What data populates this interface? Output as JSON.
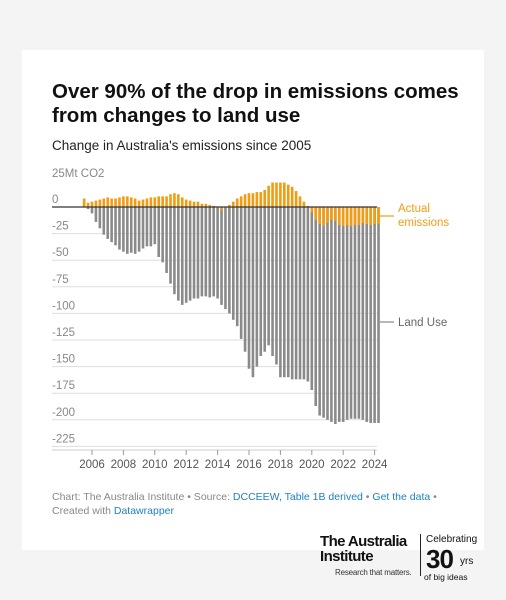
{
  "title": "Over 90% of the drop in emissions comes from changes to land use",
  "subtitle": "Change in Australia's emissions since 2005",
  "colors": {
    "actual": "#f39c12",
    "land_use": "#8a8a8a",
    "zero_line": "#333333",
    "grid": "#dddddd",
    "link": "#1d81c2"
  },
  "chart_data": {
    "type": "bar",
    "unit_label": "25Mt CO2",
    "y_ticks": [
      0,
      -25,
      -50,
      -75,
      -100,
      -125,
      -150,
      -175,
      -200,
      -225
    ],
    "x_ticks": [
      "2006",
      "2008",
      "2010",
      "2012",
      "2014",
      "2016",
      "2018",
      "2020",
      "2022",
      "2024"
    ],
    "ylim": [
      -230,
      25
    ],
    "x_range": [
      2005.0,
      2025.0
    ],
    "x": [
      2005.5,
      2005.75,
      2006.0,
      2006.25,
      2006.5,
      2006.75,
      2007.0,
      2007.25,
      2007.5,
      2007.75,
      2008.0,
      2008.25,
      2008.5,
      2008.75,
      2009.0,
      2009.25,
      2009.5,
      2009.75,
      2010.0,
      2010.25,
      2010.5,
      2010.75,
      2011.0,
      2011.25,
      2011.5,
      2011.75,
      2012.0,
      2012.25,
      2012.5,
      2012.75,
      2013.0,
      2013.25,
      2013.5,
      2013.75,
      2014.0,
      2014.25,
      2014.5,
      2014.75,
      2015.0,
      2015.25,
      2015.5,
      2015.75,
      2016.0,
      2016.25,
      2016.5,
      2016.75,
      2017.0,
      2017.25,
      2017.5,
      2017.75,
      2018.0,
      2018.25,
      2018.5,
      2018.75,
      2019.0,
      2019.25,
      2019.5,
      2019.75,
      2020.0,
      2020.25,
      2020.5,
      2020.75,
      2021.0,
      2021.25,
      2021.5,
      2021.75,
      2022.0,
      2022.25,
      2022.5,
      2022.75,
      2023.0,
      2023.25,
      2023.5,
      2023.75,
      2024.0,
      2024.25
    ],
    "series": [
      {
        "name": "Actual emissions",
        "values": [
          8,
          4,
          5,
          6,
          7,
          8,
          9,
          8,
          8,
          9,
          10,
          10,
          9,
          8,
          6,
          7,
          8,
          9,
          9,
          10,
          10,
          10,
          12,
          13,
          12,
          9,
          7,
          6,
          5,
          5,
          3,
          3,
          2,
          1,
          -1,
          -3,
          -1,
          2,
          5,
          8,
          10,
          12,
          13,
          13,
          14,
          14,
          16,
          20,
          23,
          23,
          23,
          23,
          21,
          19,
          15,
          10,
          5,
          1,
          -5,
          -12,
          -16,
          -18,
          -15,
          -12,
          -13,
          -17,
          -18,
          -17,
          -18,
          -17,
          -17,
          -15,
          -16,
          -17,
          -16,
          -16
        ]
      },
      {
        "name": "Land Use",
        "values": [
          0,
          -2,
          -6,
          -14,
          -20,
          -26,
          -30,
          -33,
          -36,
          -40,
          -42,
          -44,
          -43,
          -44,
          -42,
          -39,
          -37,
          -37,
          -35,
          -47,
          -52,
          -62,
          -72,
          -82,
          -88,
          -92,
          -90,
          -88,
          -86,
          -86,
          -84,
          -84,
          -85,
          -84,
          -86,
          -92,
          -96,
          -100,
          -106,
          -112,
          -124,
          -136,
          -152,
          -160,
          -150,
          -140,
          -136,
          -130,
          -140,
          -148,
          -160,
          -160,
          -160,
          -162,
          -162,
          -162,
          -162,
          -164,
          -172,
          -187,
          -196,
          -198,
          -200,
          -202,
          -204,
          -202,
          -202,
          -200,
          -199,
          -199,
          -199,
          -200,
          -202,
          -203,
          -203,
          -203
        ]
      }
    ],
    "annotations": [
      "Actual emissions",
      "Land Use"
    ]
  },
  "footer": {
    "prefix": "Chart: The Australia Institute",
    "source_label": "• Source:",
    "source_link": "DCCEEW, Table 1B derived",
    "sep": "•",
    "get_data": "Get the data",
    "created": "• Created with",
    "tool": "Datawrapper"
  },
  "logo": {
    "line1": "The Australia",
    "line2": "Institute",
    "tagline": "Research that matters.",
    "celebrating": "Celebrating",
    "number": "30",
    "yrs": "yrs",
    "big_ideas": "of big ideas"
  }
}
